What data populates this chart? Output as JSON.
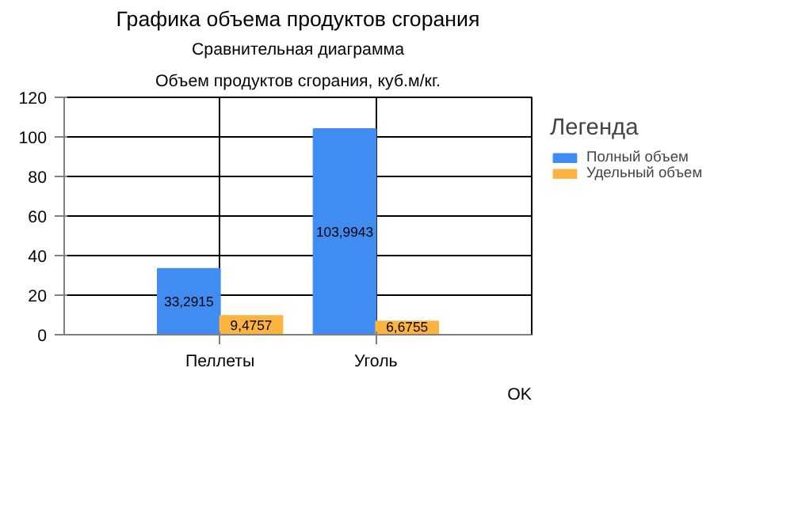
{
  "chart_data": {
    "type": "bar",
    "title": "Сравнительная диаграмма",
    "subtitle": "Объем продуктов сгорания, куб.м/кг.",
    "legend_title": "Легенда",
    "categories": [
      "Пеллеты",
      "Уголь"
    ],
    "series": [
      {
        "name": "Полный объем",
        "color": "#418cf0",
        "values": [
          33.2915,
          103.9943
        ],
        "value_labels": [
          "33,2915",
          "103,9943"
        ]
      },
      {
        "name": "Удельный объем",
        "color": "#fcb441",
        "values": [
          9.4757,
          6.6755
        ],
        "value_labels": [
          "9,4757",
          "6,6755"
        ]
      }
    ],
    "ylim": [
      0,
      120
    ],
    "yticks": [
      0,
      20,
      40,
      60,
      80,
      100,
      120
    ],
    "grid": true,
    "legend": "right",
    "annotations": [
      "Графика объема продуктов сгорания",
      "OK"
    ]
  }
}
